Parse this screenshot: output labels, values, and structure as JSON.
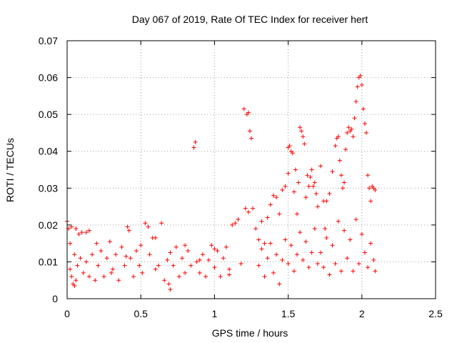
{
  "chart_data": {
    "type": "scatter",
    "title": "Day 067 of 2019, Rate Of TEC Index for receiver hert",
    "xlabel": "GPS time / hours",
    "ylabel": "ROTI / TECUs",
    "xlim": [
      0,
      2.5
    ],
    "ylim": [
      0,
      0.07
    ],
    "xticks": [
      0,
      0.5,
      1,
      1.5,
      2,
      2.5
    ],
    "yticks": [
      0,
      0.01,
      0.02,
      0.03,
      0.04,
      0.05,
      0.06,
      0.07
    ],
    "xtick_labels": [
      "0",
      "0.5",
      "1",
      "1.5",
      "2",
      "2.5"
    ],
    "ytick_labels": [
      "0",
      "0.01",
      "0.02",
      "0.03",
      "0.04",
      "0.05",
      "0.06",
      "0.07"
    ],
    "grid": true,
    "marker": "+",
    "color": "#ff0000",
    "series": [
      {
        "points": [
          [
            0.0,
            0.021
          ],
          [
            0.01,
            0.019
          ],
          [
            0.02,
            0.015
          ],
          [
            0.03,
            0.0195
          ],
          [
            0.05,
            0.012
          ],
          [
            0.06,
            0.019
          ],
          [
            0.08,
            0.0175
          ],
          [
            0.1,
            0.018
          ],
          [
            0.13,
            0.018
          ],
          [
            0.15,
            0.0185
          ],
          [
            0.02,
            0.008
          ],
          [
            0.03,
            0.006
          ],
          [
            0.04,
            0.004
          ],
          [
            0.05,
            0.0035
          ],
          [
            0.06,
            0.005
          ],
          [
            0.07,
            0.009
          ],
          [
            0.09,
            0.011
          ],
          [
            0.11,
            0.007
          ],
          [
            0.13,
            0.01
          ],
          [
            0.15,
            0.006
          ],
          [
            0.17,
            0.012
          ],
          [
            0.19,
            0.005
          ],
          [
            0.21,
            0.009
          ],
          [
            0.23,
            0.013
          ],
          [
            0.25,
            0.006
          ],
          [
            0.27,
            0.011
          ],
          [
            0.29,
            0.0155
          ],
          [
            0.31,
            0.008
          ],
          [
            0.33,
            0.012
          ],
          [
            0.35,
            0.005
          ],
          [
            0.37,
            0.014
          ],
          [
            0.39,
            0.009
          ],
          [
            0.41,
            0.0195
          ],
          [
            0.42,
            0.0185
          ],
          [
            0.43,
            0.011
          ],
          [
            0.45,
            0.006
          ],
          [
            0.47,
            0.013
          ],
          [
            0.49,
            0.009
          ],
          [
            0.51,
            0.007
          ],
          [
            0.53,
            0.0205
          ],
          [
            0.55,
            0.0195
          ],
          [
            0.56,
            0.012
          ],
          [
            0.58,
            0.0165
          ],
          [
            0.6,
            0.0165
          ],
          [
            0.62,
            0.009
          ],
          [
            0.64,
            0.0205
          ],
          [
            0.66,
            0.005
          ],
          [
            0.68,
            0.0105
          ],
          [
            0.69,
            0.004
          ],
          [
            0.7,
            0.0025
          ],
          [
            0.72,
            0.009
          ],
          [
            0.74,
            0.014
          ],
          [
            0.76,
            0.006
          ],
          [
            0.78,
            0.011
          ],
          [
            0.8,
            0.007
          ],
          [
            0.82,
            0.013
          ],
          [
            0.84,
            0.009
          ],
          [
            0.86,
            0.041
          ],
          [
            0.87,
            0.0425
          ],
          [
            0.88,
            0.01
          ],
          [
            0.9,
            0.007
          ],
          [
            0.92,
            0.012
          ],
          [
            0.94,
            0.006
          ],
          [
            0.96,
            0.0105
          ],
          [
            0.98,
            0.0145
          ],
          [
            1.0,
            0.0085
          ],
          [
            1.02,
            0.013
          ],
          [
            1.04,
            0.006
          ],
          [
            1.06,
            0.011
          ],
          [
            1.08,
            0.014
          ],
          [
            1.1,
            0.008
          ],
          [
            1.12,
            0.02
          ],
          [
            1.14,
            0.0205
          ],
          [
            1.16,
            0.0215
          ],
          [
            1.18,
            0.0095
          ],
          [
            1.2,
            0.0515
          ],
          [
            1.22,
            0.05
          ],
          [
            1.23,
            0.0505
          ],
          [
            1.24,
            0.0455
          ],
          [
            1.25,
            0.0435
          ],
          [
            1.21,
            0.0245
          ],
          [
            1.23,
            0.0235
          ],
          [
            1.26,
            0.0245
          ],
          [
            1.28,
            0.019
          ],
          [
            1.3,
            0.016
          ],
          [
            1.32,
            0.021
          ],
          [
            1.34,
            0.015
          ],
          [
            1.36,
            0.022
          ],
          [
            1.38,
            0.0255
          ],
          [
            1.4,
            0.028
          ],
          [
            1.42,
            0.0275
          ],
          [
            1.44,
            0.023
          ],
          [
            1.46,
            0.0295
          ],
          [
            1.48,
            0.0305
          ],
          [
            1.5,
            0.034
          ],
          [
            1.5,
            0.041
          ],
          [
            1.51,
            0.0415
          ],
          [
            1.52,
            0.04
          ],
          [
            1.53,
            0.0395
          ],
          [
            1.54,
            0.029
          ],
          [
            1.55,
            0.035
          ],
          [
            1.56,
            0.023
          ],
          [
            1.57,
            0.0315
          ],
          [
            1.58,
            0.0465
          ],
          [
            1.59,
            0.0455
          ],
          [
            1.6,
            0.044
          ],
          [
            1.61,
            0.042
          ],
          [
            1.62,
            0.0275
          ],
          [
            1.63,
            0.0335
          ],
          [
            1.64,
            0.0305
          ],
          [
            1.65,
            0.033
          ],
          [
            1.66,
            0.035
          ],
          [
            1.67,
            0.0305
          ],
          [
            1.68,
            0.0315
          ],
          [
            1.69,
            0.0285
          ],
          [
            1.7,
            0.025
          ],
          [
            1.72,
            0.036
          ],
          [
            1.74,
            0.0265
          ],
          [
            1.75,
            0.019
          ],
          [
            1.76,
            0.0265
          ],
          [
            1.78,
            0.0285
          ],
          [
            1.8,
            0.0345
          ],
          [
            1.82,
            0.0415
          ],
          [
            1.83,
            0.0435
          ],
          [
            1.84,
            0.044
          ],
          [
            1.85,
            0.0375
          ],
          [
            1.86,
            0.0335
          ],
          [
            1.87,
            0.03
          ],
          [
            1.88,
            0.0315
          ],
          [
            1.89,
            0.0405
          ],
          [
            1.9,
            0.045
          ],
          [
            1.91,
            0.0465
          ],
          [
            1.92,
            0.0455
          ],
          [
            1.93,
            0.046
          ],
          [
            1.94,
            0.044
          ],
          [
            1.95,
            0.049
          ],
          [
            1.96,
            0.0535
          ],
          [
            1.97,
            0.0575
          ],
          [
            1.98,
            0.06
          ],
          [
            1.99,
            0.0605
          ],
          [
            2.0,
            0.058
          ],
          [
            2.01,
            0.0515
          ],
          [
            2.02,
            0.0475
          ],
          [
            2.03,
            0.045
          ],
          [
            2.04,
            0.0335
          ],
          [
            2.05,
            0.03
          ],
          [
            2.06,
            0.0265
          ],
          [
            2.07,
            0.0305
          ],
          [
            2.08,
            0.03
          ],
          [
            2.09,
            0.0295
          ],
          [
            1.72,
            0.0125
          ],
          [
            1.74,
            0.0085
          ],
          [
            1.76,
            0.0165
          ],
          [
            1.78,
            0.0065
          ],
          [
            1.8,
            0.0145
          ],
          [
            1.82,
            0.0095
          ],
          [
            1.84,
            0.021
          ],
          [
            1.86,
            0.0075
          ],
          [
            1.88,
            0.0185
          ],
          [
            1.9,
            0.011
          ],
          [
            1.92,
            0.016
          ],
          [
            1.94,
            0.0075
          ],
          [
            1.96,
            0.0215
          ],
          [
            1.98,
            0.0095
          ],
          [
            2.0,
            0.0175
          ],
          [
            2.02,
            0.0125
          ],
          [
            2.04,
            0.0085
          ],
          [
            2.06,
            0.015
          ],
          [
            2.08,
            0.0105
          ],
          [
            2.09,
            0.0075
          ],
          [
            1.3,
            0.009
          ],
          [
            1.32,
            0.0135
          ],
          [
            1.34,
            0.006
          ],
          [
            1.36,
            0.011
          ],
          [
            1.38,
            0.015
          ],
          [
            1.4,
            0.007
          ],
          [
            1.42,
            0.012
          ],
          [
            1.44,
            0.004
          ],
          [
            1.46,
            0.0105
          ],
          [
            1.48,
            0.016
          ],
          [
            1.5,
            0.0095
          ],
          [
            1.52,
            0.0145
          ],
          [
            1.54,
            0.0075
          ],
          [
            1.56,
            0.012
          ],
          [
            1.58,
            0.018
          ],
          [
            1.6,
            0.0105
          ],
          [
            1.62,
            0.0155
          ],
          [
            1.64,
            0.0085
          ],
          [
            1.66,
            0.0125
          ],
          [
            1.68,
            0.019
          ],
          [
            1.7,
            0.0095
          ],
          [
            0.2,
            0.015
          ],
          [
            0.3,
            0.007
          ],
          [
            0.4,
            0.0115
          ],
          [
            0.5,
            0.0145
          ],
          [
            0.6,
            0.008
          ],
          [
            0.7,
            0.0125
          ],
          [
            0.8,
            0.0145
          ],
          [
            0.9,
            0.0105
          ],
          [
            1.0,
            0.0135
          ],
          [
            1.1,
            0.0065
          ]
        ]
      }
    ]
  }
}
